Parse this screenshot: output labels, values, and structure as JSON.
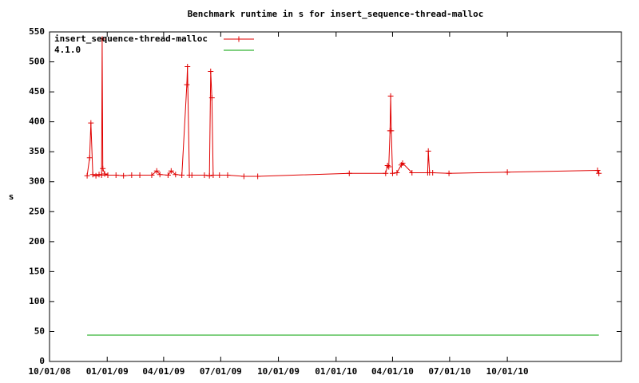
{
  "chart_data": {
    "type": "line",
    "title": "Benchmark runtime in s for insert_sequence-thread-malloc",
    "y_label": "s",
    "xlim": [
      "2008-10-01",
      "2011-04-01"
    ],
    "xticks": [
      {
        "value": "2008-10-01",
        "label": "10/01/08"
      },
      {
        "value": "2009-01-01",
        "label": "01/01/09"
      },
      {
        "value": "2009-04-01",
        "label": "04/01/09"
      },
      {
        "value": "2009-07-01",
        "label": "07/01/09"
      },
      {
        "value": "2009-10-01",
        "label": "10/01/09"
      },
      {
        "value": "2010-01-01",
        "label": "01/01/10"
      },
      {
        "value": "2010-04-01",
        "label": "04/01/10"
      },
      {
        "value": "2010-07-01",
        "label": "07/01/10"
      },
      {
        "value": "2010-10-01",
        "label": "10/01/10"
      }
    ],
    "ylim": [
      0,
      550
    ],
    "yticks": [
      0,
      50,
      100,
      150,
      200,
      250,
      300,
      350,
      400,
      450,
      500,
      550
    ],
    "legend": "top left",
    "series": [
      {
        "name": "insert_sequence-thread-malloc",
        "color": "#e00000",
        "markers": true,
        "x": [
          "2008-11-30",
          "2008-12-04",
          "2008-12-06",
          "2008-12-09",
          "2008-12-14",
          "2008-12-19",
          "2008-12-23",
          "2008-12-24",
          "2008-12-25",
          "2008-12-28",
          "2009-01-02",
          "2009-01-15",
          "2009-01-27",
          "2009-02-09",
          "2009-02-22",
          "2009-03-13",
          "2009-03-21",
          "2009-03-26",
          "2009-04-08",
          "2009-04-13",
          "2009-04-20",
          "2009-04-30",
          "2009-05-08",
          "2009-05-09",
          "2009-05-12",
          "2009-05-16",
          "2009-06-05",
          "2009-06-13",
          "2009-06-15",
          "2009-06-17",
          "2009-06-19",
          "2009-06-29",
          "2009-07-12",
          "2009-08-07",
          "2009-08-29",
          "2010-01-22",
          "2010-03-21",
          "2010-03-24",
          "2010-03-26",
          "2010-03-28",
          "2010-03-29",
          "2010-03-30",
          "2010-04-01",
          "2010-04-08",
          "2010-04-15",
          "2010-04-17",
          "2010-05-02",
          "2010-05-27",
          "2010-05-28",
          "2010-05-30",
          "2010-06-04",
          "2010-06-30",
          "2010-10-01",
          "2011-02-22",
          "2011-02-24"
        ],
        "values": [
          310,
          340,
          398,
          312,
          310,
          312,
          311,
          538,
          322,
          313,
          311,
          311,
          310,
          311,
          311,
          311,
          318,
          312,
          311,
          318,
          312,
          311,
          462,
          492,
          311,
          311,
          311,
          310,
          484,
          440,
          311,
          311,
          311,
          309,
          309,
          314,
          314,
          327,
          325,
          385,
          443,
          385,
          314,
          315,
          328,
          331,
          315,
          315,
          351,
          315,
          315,
          314,
          316,
          319,
          314
        ]
      },
      {
        "name": "4.1.0",
        "color": "#00a000",
        "markers": false,
        "x": [
          "2008-11-30",
          "2011-02-24"
        ],
        "values": [
          44,
          44
        ]
      }
    ]
  }
}
